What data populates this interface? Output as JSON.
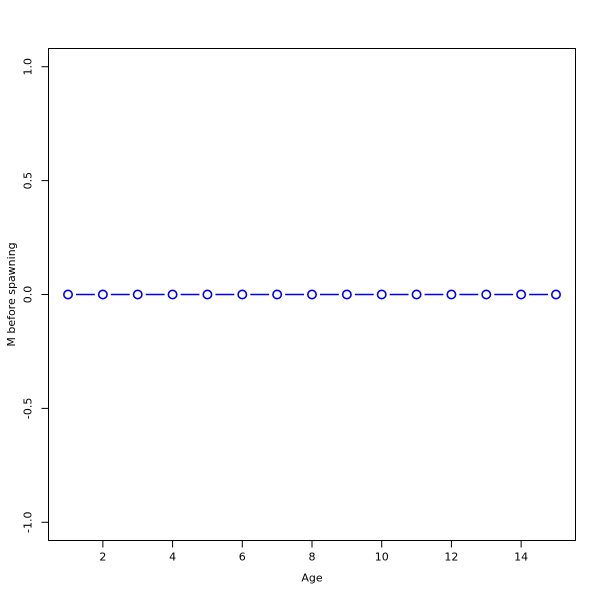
{
  "figure": {
    "background": "#ffffff",
    "kind": "r-base-scatter-line-plot"
  },
  "chart_data": {
    "type": "line",
    "marker": "open-circle",
    "line_style": "segments-with-gaps-at-points",
    "title": "",
    "xlabel": "Age",
    "ylabel": "M before spawning",
    "x": [
      1,
      2,
      3,
      4,
      5,
      6,
      7,
      8,
      9,
      10,
      11,
      12,
      13,
      14,
      15
    ],
    "y": [
      0,
      0,
      0,
      0,
      0,
      0,
      0,
      0,
      0,
      0,
      0,
      0,
      0,
      0,
      0
    ],
    "xlim": [
      0.44,
      15.56
    ],
    "ylim": [
      -1.08,
      1.08
    ],
    "xticks": {
      "values": [
        2,
        4,
        6,
        8,
        10,
        12,
        14
      ],
      "labels": [
        "2",
        "4",
        "6",
        "8",
        "10",
        "12",
        "14"
      ]
    },
    "yticks": {
      "values": [
        -1.0,
        -0.5,
        0.0,
        0.5,
        1.0
      ],
      "labels": [
        "-1.0",
        "-0.5",
        "0.0",
        "0.5",
        "1.0"
      ]
    },
    "grid": false,
    "legend": null,
    "colors": {
      "series": "#0000f5",
      "axis": "#000000",
      "background": "#ffffff",
      "marker_fill": "#ffffff"
    }
  }
}
